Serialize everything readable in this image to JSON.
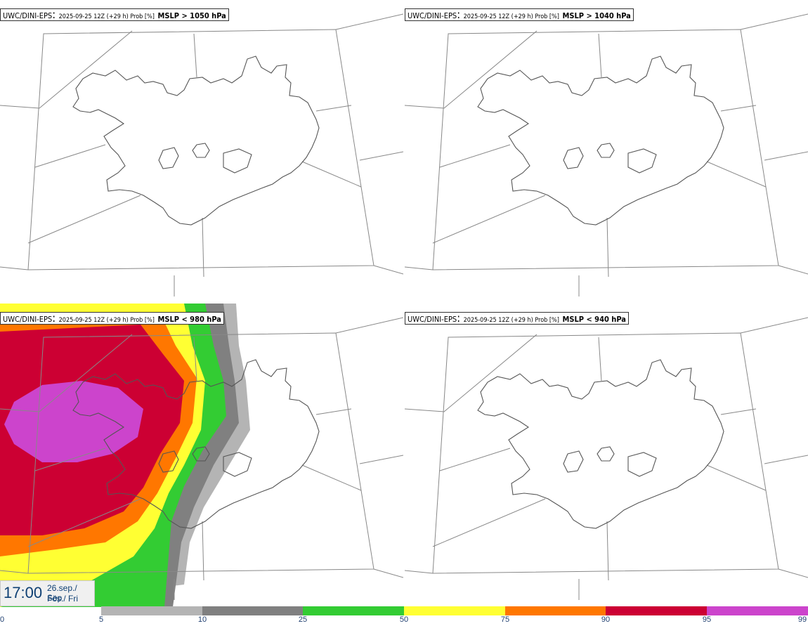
{
  "panels": [
    {
      "model": "UWC/DINI-EPS",
      "run": "2025-09-25 12Z (+29 h) Prob [%]",
      "field": "MSLP > 1050 hPa"
    },
    {
      "model": "UWC/DINI-EPS",
      "run": "2025-09-25 12Z (+29 h) Prob [%]",
      "field": "MSLP > 1040 hPa"
    },
    {
      "model": "UWC/DINI-EPS",
      "run": "2025-09-25 12Z (+29 h) Prob [%]",
      "field": "MSLP < 980 hPa"
    },
    {
      "model": "UWC/DINI-EPS",
      "run": "2025-09-25 12Z (+29 h) Prob [%]",
      "field": "MSLP < 940 hPa"
    }
  ],
  "valid_time": {
    "time": "17:00",
    "date": "26.sep./ Sep",
    "day": "Fös./ Fri"
  },
  "legend": {
    "ticks": [
      "0",
      "5",
      "10",
      "25",
      "50",
      "75",
      "90",
      "95",
      "99"
    ],
    "colors": {
      "5-10": "#b4b4b4",
      "10-25": "#808080",
      "25-50": "#33cc33",
      "50-75": "#ffff33",
      "75-90": "#ff7700",
      "90-95": "#cc0033",
      "95-99": "#cc44cc",
      "99+": "#f0b0f0"
    }
  },
  "colors": {
    "coastline": "#555555",
    "grid": "#888888",
    "label_text": "#1f3f70"
  }
}
